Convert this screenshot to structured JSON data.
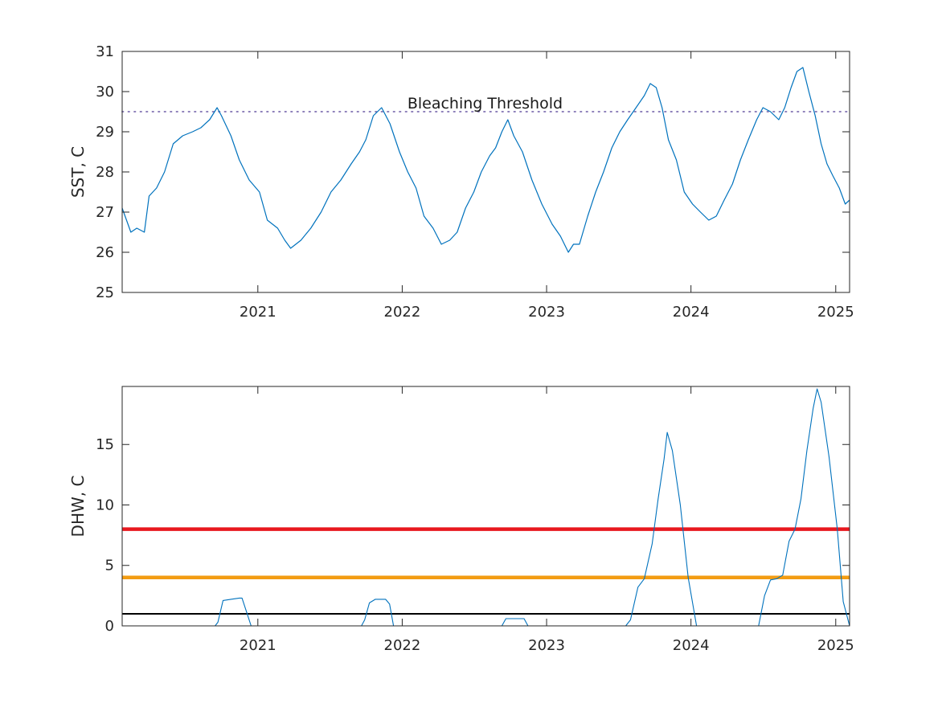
{
  "colors": {
    "series": "#0072bd",
    "threshold_dotted": "#7e6fb0",
    "alert_red": "#e8171e",
    "alert_orange": "#f39c12",
    "alert_black": "#000000",
    "axes": "#262626"
  },
  "chart_data": [
    {
      "type": "line",
      "title": "",
      "xlabel": "",
      "ylabel": "SST, C",
      "xlim": [
        "2020-01-24",
        "2025-02-05"
      ],
      "ylim": [
        25,
        31
      ],
      "x_ticks": [
        "2021",
        "2022",
        "2023",
        "2024",
        "2025"
      ],
      "y_ticks": [
        "25",
        "26",
        "27",
        "28",
        "29",
        "30",
        "31"
      ],
      "grid": false,
      "annotation": {
        "text": "Bleaching Threshold",
        "x": "2021-12-28",
        "y": 29.7
      },
      "reference_lines": [
        {
          "y": 29.5,
          "style": "dotted"
        }
      ],
      "series": [
        {
          "x": [
            "2020-01-24",
            "2020-02-15",
            "2020-03-01",
            "2020-03-20",
            "2020-04-01",
            "2020-04-20",
            "2020-05-10",
            "2020-06-01",
            "2020-06-25",
            "2020-07-20",
            "2020-08-10",
            "2020-09-01",
            "2020-09-20",
            "2020-10-01",
            "2020-10-25",
            "2020-11-15",
            "2020-12-10",
            "2021-01-05",
            "2021-01-25",
            "2021-02-20",
            "2021-03-10",
            "2021-03-25",
            "2021-04-20",
            "2021-05-15",
            "2021-06-10",
            "2021-07-05",
            "2021-07-30",
            "2021-08-25",
            "2021-09-15",
            "2021-10-01",
            "2021-10-20",
            "2021-11-10",
            "2021-12-01",
            "2021-12-25",
            "2022-01-15",
            "2022-02-05",
            "2022-02-25",
            "2022-03-20",
            "2022-04-10",
            "2022-05-01",
            "2022-05-20",
            "2022-06-10",
            "2022-07-01",
            "2022-07-20",
            "2022-08-10",
            "2022-08-25",
            "2022-09-10",
            "2022-09-25",
            "2022-10-10",
            "2022-11-01",
            "2022-11-25",
            "2022-12-20",
            "2023-01-15",
            "2023-02-05",
            "2023-02-25",
            "2023-03-10",
            "2023-03-25",
            "2023-04-15",
            "2023-05-05",
            "2023-05-25",
            "2023-06-15",
            "2023-07-05",
            "2023-07-25",
            "2023-08-15",
            "2023-09-05",
            "2023-09-20",
            "2023-10-05",
            "2023-10-20",
            "2023-11-05",
            "2023-11-25",
            "2023-12-15",
            "2024-01-05",
            "2024-01-25",
            "2024-02-15",
            "2024-03-05",
            "2024-03-25",
            "2024-04-15",
            "2024-05-05",
            "2024-05-25",
            "2024-06-15",
            "2024-07-01",
            "2024-07-20",
            "2024-08-10",
            "2024-08-25",
            "2024-09-10",
            "2024-09-25",
            "2024-10-10",
            "2024-10-25",
            "2024-11-10",
            "2024-11-25",
            "2024-12-10",
            "2024-12-25",
            "2025-01-10",
            "2025-01-25",
            "2025-02-05"
          ],
          "y": [
            27.1,
            26.5,
            26.6,
            26.5,
            27.4,
            27.6,
            28.0,
            28.7,
            28.9,
            29.0,
            29.1,
            29.3,
            29.6,
            29.4,
            28.9,
            28.3,
            27.8,
            27.5,
            26.8,
            26.6,
            26.3,
            26.1,
            26.3,
            26.6,
            27.0,
            27.5,
            27.8,
            28.2,
            28.5,
            28.8,
            29.4,
            29.6,
            29.2,
            28.5,
            28.0,
            27.6,
            26.9,
            26.6,
            26.2,
            26.3,
            26.5,
            27.1,
            27.5,
            28.0,
            28.4,
            28.6,
            29.0,
            29.3,
            28.9,
            28.5,
            27.8,
            27.2,
            26.7,
            26.4,
            26.0,
            26.2,
            26.2,
            26.9,
            27.5,
            28.0,
            28.6,
            29.0,
            29.3,
            29.6,
            29.9,
            30.2,
            30.1,
            29.6,
            28.8,
            28.3,
            27.5,
            27.2,
            27.0,
            26.8,
            26.9,
            27.3,
            27.7,
            28.3,
            28.8,
            29.3,
            29.6,
            29.5,
            29.3,
            29.6,
            30.1,
            30.5,
            30.6,
            30.0,
            29.4,
            28.7,
            28.2,
            27.9,
            27.6,
            27.2,
            27.3
          ]
        }
      ]
    },
    {
      "type": "line",
      "title": "",
      "xlabel": "",
      "ylabel": "DHW, C",
      "xlim": [
        "2020-01-24",
        "2025-02-05"
      ],
      "ylim": [
        0,
        19.8
      ],
      "x_ticks": [
        "2021",
        "2022",
        "2023",
        "2024",
        "2025"
      ],
      "y_ticks": [
        "0",
        "5",
        "10",
        "15"
      ],
      "grid": false,
      "reference_lines": [
        {
          "y": 8,
          "color": "red"
        },
        {
          "y": 4,
          "color": "orange"
        },
        {
          "y": 1,
          "color": "black"
        }
      ],
      "series": [
        {
          "x": [
            "2020-01-24",
            "2020-09-15",
            "2020-09-22",
            "2020-10-05",
            "2020-10-25",
            "2020-11-15",
            "2020-11-22",
            "2020-12-05",
            "2020-12-15",
            "2021-09-20",
            "2021-09-28",
            "2021-10-10",
            "2021-10-25",
            "2021-11-20",
            "2021-11-30",
            "2021-12-10",
            "2022-09-10",
            "2022-09-20",
            "2022-11-05",
            "2022-11-15",
            "2023-07-20",
            "2023-08-01",
            "2023-08-20",
            "2023-09-05",
            "2023-09-25",
            "2023-10-10",
            "2023-10-25",
            "2023-11-02",
            "2023-11-15",
            "2023-12-05",
            "2023-12-25",
            "2024-01-15",
            "2024-01-25",
            "2024-06-20",
            "2024-07-05",
            "2024-07-20",
            "2024-08-05",
            "2024-08-20",
            "2024-09-05",
            "2024-09-20",
            "2024-10-05",
            "2024-10-20",
            "2024-11-05",
            "2024-11-15",
            "2024-11-25",
            "2024-12-15",
            "2025-01-05",
            "2025-01-20",
            "2025-02-05"
          ],
          "y": [
            0,
            0,
            0.3,
            2.1,
            2.2,
            2.3,
            2.3,
            1.0,
            0,
            0,
            0.5,
            1.9,
            2.2,
            2.2,
            1.8,
            0,
            0,
            0.6,
            0.6,
            0,
            0,
            0.5,
            3.2,
            3.9,
            6.8,
            10.5,
            13.8,
            16.0,
            14.5,
            10.0,
            4.0,
            0,
            0,
            0,
            2.5,
            3.8,
            3.9,
            4.2,
            7.0,
            8.0,
            10.5,
            14.5,
            18.0,
            19.6,
            18.5,
            14.0,
            8.0,
            2.0,
            0
          ]
        }
      ]
    }
  ]
}
